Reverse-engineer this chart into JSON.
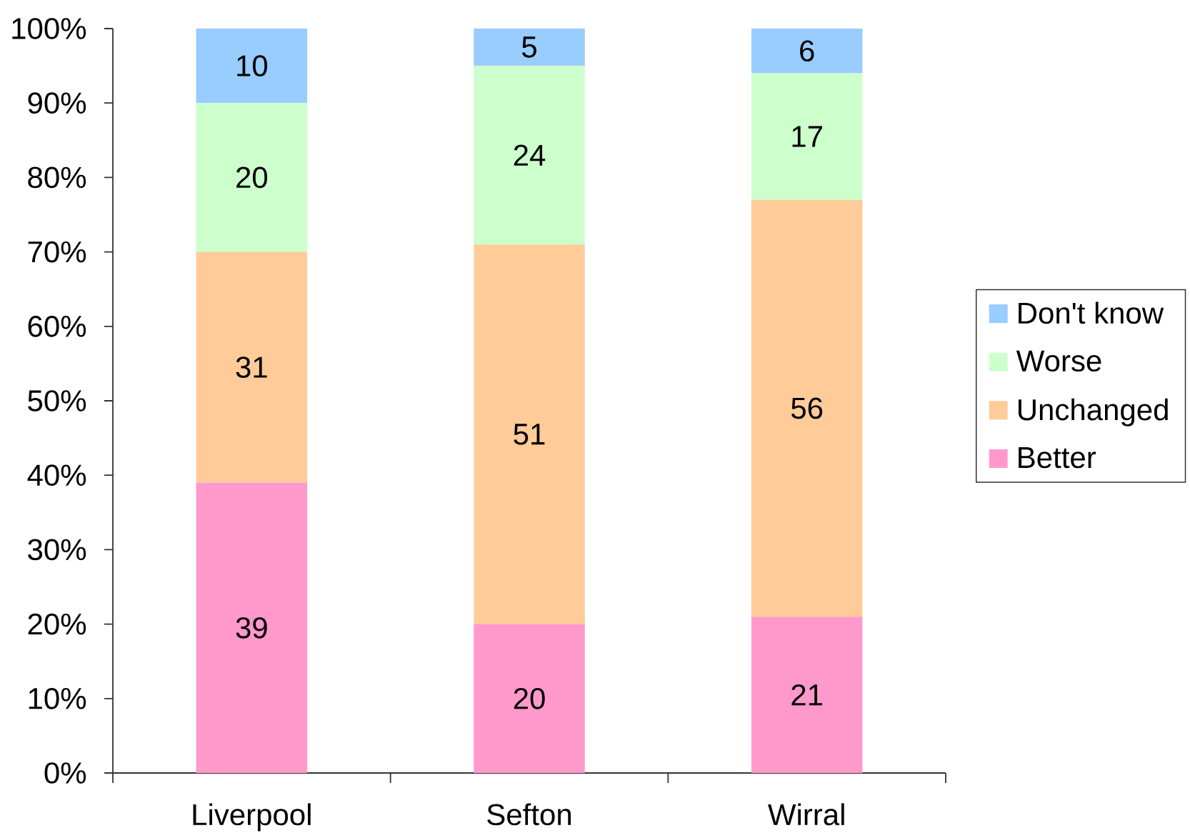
{
  "chart_data": {
    "type": "bar",
    "stacked": true,
    "categories": [
      "Liverpool",
      "Sefton",
      "Wirral"
    ],
    "series": [
      {
        "name": "Better",
        "color": "#ff99cc",
        "values": [
          39,
          20,
          21
        ]
      },
      {
        "name": "Unchanged",
        "color": "#ffcc99",
        "values": [
          31,
          51,
          56
        ]
      },
      {
        "name": "Worse",
        "color": "#ccffcc",
        "values": [
          20,
          24,
          17
        ]
      },
      {
        "name": "Don't know",
        "color": "#99ccff",
        "values": [
          10,
          5,
          6
        ]
      }
    ],
    "ylim": [
      0,
      100
    ],
    "yticks": [
      {
        "value": 0,
        "label": "0%"
      },
      {
        "value": 10,
        "label": "10%"
      },
      {
        "value": 20,
        "label": "20%"
      },
      {
        "value": 30,
        "label": "30%"
      },
      {
        "value": 40,
        "label": "40%"
      },
      {
        "value": 50,
        "label": "50%"
      },
      {
        "value": 60,
        "label": "60%"
      },
      {
        "value": 70,
        "label": "70%"
      },
      {
        "value": 80,
        "label": "80%"
      },
      {
        "value": 90,
        "label": "90%"
      },
      {
        "value": 100,
        "label": "100%"
      }
    ],
    "data_labels": true,
    "legend": "right"
  }
}
